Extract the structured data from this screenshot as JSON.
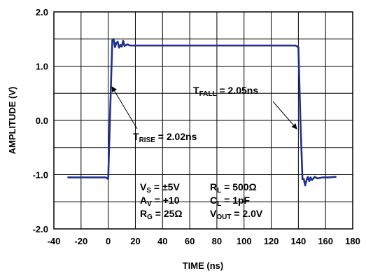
{
  "chart_data": {
    "type": "line",
    "xlabel": "TIME (ns)",
    "ylabel": "AMPLITUDE (V)",
    "xlim": [
      -40,
      180
    ],
    "ylim": [
      -2.0,
      2.0
    ],
    "x_ticks": [
      "-40",
      "-20",
      "0",
      "20",
      "40",
      "60",
      "80",
      "100",
      "120",
      "140",
      "160",
      "180"
    ],
    "y_ticks": [
      "2.0",
      "1.0",
      "0.0",
      "-1.0",
      "-2.0"
    ],
    "grid": true,
    "line_color": "#1f2f8f",
    "series": [
      {
        "x": [
          -30,
          -20,
          -10,
          -2,
          0,
          1.5,
          3,
          4,
          5,
          6,
          7,
          8,
          9,
          10,
          11,
          12,
          14,
          16,
          20,
          40,
          60,
          80,
          100,
          120,
          138,
          140,
          141.5,
          143,
          144,
          145,
          146,
          147,
          148,
          149,
          150,
          152,
          154,
          158,
          162,
          168
        ],
        "y": [
          -1.05,
          -1.05,
          -1.05,
          -1.05,
          -1.08,
          0.2,
          1.48,
          1.5,
          1.35,
          1.43,
          1.45,
          1.34,
          1.39,
          1.36,
          1.47,
          1.37,
          1.4,
          1.38,
          1.38,
          1.38,
          1.38,
          1.38,
          1.38,
          1.38,
          1.38,
          1.35,
          0.0,
          -1.08,
          -1.08,
          -1.2,
          -1.1,
          -1.04,
          -1.12,
          -1.05,
          -1.1,
          -1.04,
          -1.07,
          -1.05,
          -1.05,
          -1.04
        ]
      }
    ],
    "annotations": {
      "trise": {
        "main": "T",
        "sub": "RISE",
        "rest": " = 2.02ns"
      },
      "tfall": {
        "main": "T",
        "sub": "FALL",
        "rest": " = 2.05ns"
      },
      "conditions": [
        {
          "main": "V",
          "sub": "S",
          "rest": " = ±5V"
        },
        {
          "main": "R",
          "sub": "L",
          "rest": " = 500Ω"
        },
        {
          "main": "A",
          "sub": "V",
          "rest": " = +10"
        },
        {
          "main": "C",
          "sub": "L",
          "rest": " = 1pF"
        },
        {
          "main": "R",
          "sub": "G",
          "rest": " = 25Ω"
        },
        {
          "main": "V",
          "sub": "OUT",
          "rest": " = 2.0V"
        }
      ]
    }
  }
}
